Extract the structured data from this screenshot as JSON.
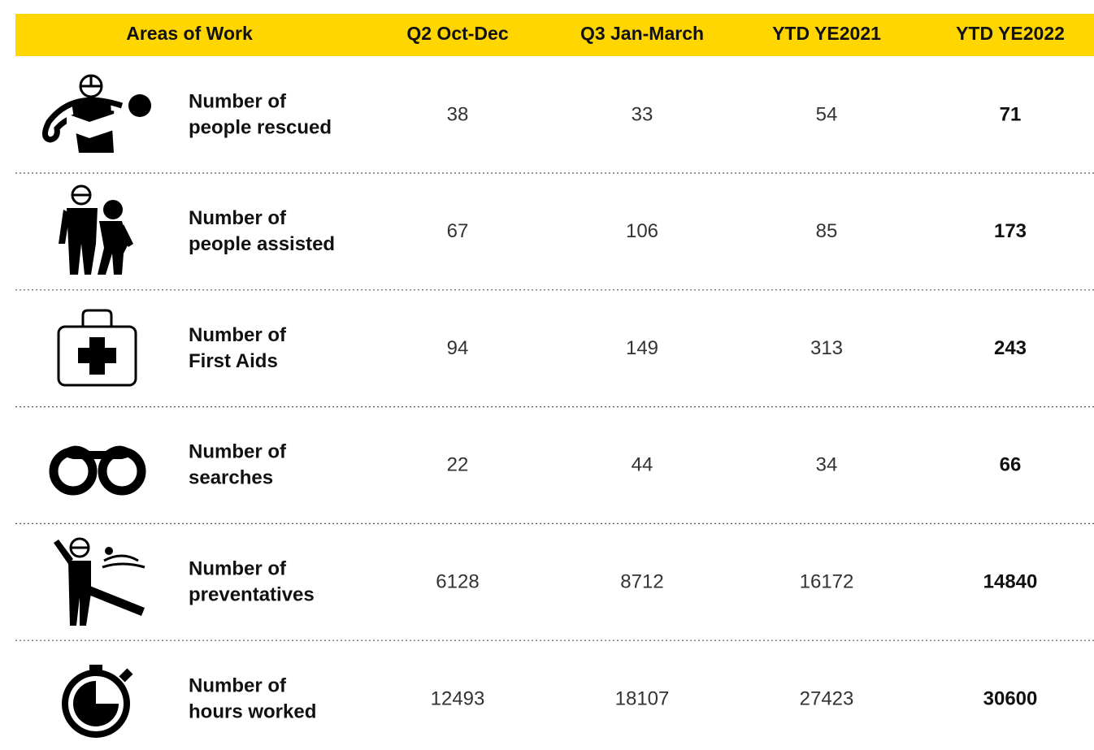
{
  "table": {
    "header": [
      "Areas of Work",
      "Q2 Oct-Dec",
      "Q3 Jan-March",
      "YTD YE2021",
      "YTD YE2022"
    ],
    "rows": [
      {
        "label": [
          "Number of",
          "people rescued"
        ],
        "values": [
          38,
          33,
          54,
          71
        ]
      },
      {
        "label": [
          "Number of",
          "people assisted"
        ],
        "values": [
          67,
          106,
          85,
          173
        ]
      },
      {
        "label": [
          "Number of",
          "First Aids"
        ],
        "values": [
          94,
          149,
          313,
          243
        ]
      },
      {
        "label": [
          "Number of",
          "searches"
        ],
        "values": [
          22,
          44,
          34,
          66
        ]
      },
      {
        "label": [
          "Number of",
          "preventatives"
        ],
        "values": [
          6128,
          8712,
          16172,
          14840
        ]
      },
      {
        "label": [
          "Number of",
          "hours worked"
        ],
        "values": [
          12493,
          18107,
          27423,
          30600
        ]
      }
    ]
  }
}
